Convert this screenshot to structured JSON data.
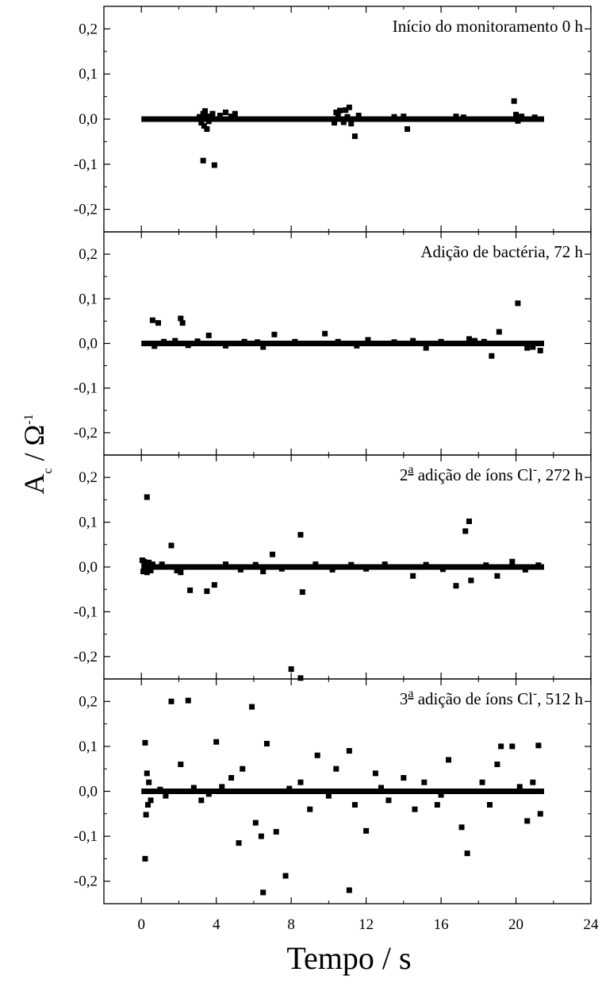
{
  "chart_data": {
    "type": "scatter",
    "xlabel": "Tempo / s",
    "ylabel": "A_c / Ω^-1",
    "ylabel_parts": {
      "main": "A",
      "sub": "c",
      "sep": " / Ω",
      "sup": "-1"
    },
    "xlim": [
      -2,
      24
    ],
    "ylim": [
      -0.25,
      0.25
    ],
    "xticks": [
      0,
      4,
      8,
      12,
      16,
      20,
      24
    ],
    "yticks": [
      -0.2,
      -0.1,
      0.0,
      0.1,
      0.2
    ],
    "ytick_labels": [
      "-0,2",
      "-0,1",
      "0,0",
      "0,1",
      "0,2"
    ],
    "marker_color": "#000000",
    "panels": [
      {
        "title": "Início do monitoramento 0 h",
        "title_parts": null,
        "baseline_x": [
          0,
          21.5
        ],
        "points": [
          {
            "x": 3.1,
            "y": 0.005
          },
          {
            "x": 3.2,
            "y": -0.008
          },
          {
            "x": 3.3,
            "y": 0.012
          },
          {
            "x": 3.35,
            "y": -0.015
          },
          {
            "x": 3.4,
            "y": 0.018
          },
          {
            "x": 3.5,
            "y": -0.022
          },
          {
            "x": 3.55,
            "y": 0.006
          },
          {
            "x": 3.6,
            "y": -0.005
          },
          {
            "x": 3.3,
            "y": -0.092
          },
          {
            "x": 3.9,
            "y": -0.102
          },
          {
            "x": 3.8,
            "y": 0.012
          },
          {
            "x": 4.2,
            "y": 0.008
          },
          {
            "x": 4.5,
            "y": 0.015
          },
          {
            "x": 4.8,
            "y": 0.006
          },
          {
            "x": 5.0,
            "y": 0.012
          },
          {
            "x": 10.3,
            "y": -0.008
          },
          {
            "x": 10.4,
            "y": 0.015
          },
          {
            "x": 10.5,
            "y": 0.01
          },
          {
            "x": 10.6,
            "y": 0.019
          },
          {
            "x": 10.8,
            "y": -0.007
          },
          {
            "x": 10.9,
            "y": 0.02
          },
          {
            "x": 11.0,
            "y": 0.005
          },
          {
            "x": 11.1,
            "y": 0.026
          },
          {
            "x": 11.2,
            "y": -0.01
          },
          {
            "x": 11.4,
            "y": -0.038
          },
          {
            "x": 11.6,
            "y": 0.008
          },
          {
            "x": 13.5,
            "y": 0.005
          },
          {
            "x": 14.2,
            "y": -0.022
          },
          {
            "x": 14.0,
            "y": 0.006
          },
          {
            "x": 16.8,
            "y": 0.006
          },
          {
            "x": 17.2,
            "y": 0.004
          },
          {
            "x": 19.9,
            "y": 0.04
          },
          {
            "x": 20.0,
            "y": 0.01
          },
          {
            "x": 20.1,
            "y": -0.004
          },
          {
            "x": 20.3,
            "y": 0.006
          },
          {
            "x": 21.0,
            "y": 0.004
          }
        ]
      },
      {
        "title": "Adição de bactéria, 72 h",
        "title_parts": null,
        "baseline_x": [
          0,
          21.5
        ],
        "points": [
          {
            "x": 0.6,
            "y": 0.052
          },
          {
            "x": 0.9,
            "y": 0.046
          },
          {
            "x": 2.1,
            "y": 0.056
          },
          {
            "x": 2.2,
            "y": 0.046
          },
          {
            "x": 3.6,
            "y": 0.018
          },
          {
            "x": 0.7,
            "y": -0.006
          },
          {
            "x": 1.2,
            "y": 0.004
          },
          {
            "x": 1.8,
            "y": 0.006
          },
          {
            "x": 2.5,
            "y": -0.004
          },
          {
            "x": 3.0,
            "y": 0.005
          },
          {
            "x": 4.5,
            "y": -0.005
          },
          {
            "x": 5.5,
            "y": 0.004
          },
          {
            "x": 6.2,
            "y": 0.003
          },
          {
            "x": 6.5,
            "y": -0.008
          },
          {
            "x": 7.1,
            "y": 0.02
          },
          {
            "x": 8.2,
            "y": 0.004
          },
          {
            "x": 9.8,
            "y": 0.022
          },
          {
            "x": 10.5,
            "y": 0.004
          },
          {
            "x": 11.5,
            "y": -0.005
          },
          {
            "x": 12.1,
            "y": 0.008
          },
          {
            "x": 13.5,
            "y": 0.003
          },
          {
            "x": 14.5,
            "y": 0.006
          },
          {
            "x": 15.2,
            "y": -0.01
          },
          {
            "x": 16.0,
            "y": 0.004
          },
          {
            "x": 17.5,
            "y": 0.01
          },
          {
            "x": 17.8,
            "y": 0.006
          },
          {
            "x": 18.3,
            "y": 0.004
          },
          {
            "x": 18.7,
            "y": -0.028
          },
          {
            "x": 19.1,
            "y": 0.026
          },
          {
            "x": 20.1,
            "y": 0.09
          },
          {
            "x": 20.6,
            "y": -0.01
          },
          {
            "x": 20.9,
            "y": -0.008
          },
          {
            "x": 21.3,
            "y": -0.016
          }
        ]
      },
      {
        "title": "2ª adição de íons Cl-, 272 h",
        "title_parts": {
          "pre": "2",
          "sup1": "a",
          "mid": " adição de íons Cl",
          "sup2": "-",
          "post": ", 272 h"
        },
        "baseline_x": [
          0,
          21.5
        ],
        "points": [
          {
            "x": 0.05,
            "y": 0.015
          },
          {
            "x": 0.1,
            "y": -0.01
          },
          {
            "x": 0.15,
            "y": 0.012
          },
          {
            "x": 0.2,
            "y": -0.006
          },
          {
            "x": 0.25,
            "y": 0.008
          },
          {
            "x": 0.3,
            "y": -0.012
          },
          {
            "x": 0.35,
            "y": 0.004
          },
          {
            "x": 0.4,
            "y": 0.01
          },
          {
            "x": 0.5,
            "y": -0.008
          },
          {
            "x": 0.6,
            "y": 0.006
          },
          {
            "x": 0.3,
            "y": 0.156
          },
          {
            "x": 1.6,
            "y": 0.048
          },
          {
            "x": 2.1,
            "y": -0.012
          },
          {
            "x": 2.6,
            "y": -0.052
          },
          {
            "x": 3.5,
            "y": -0.054
          },
          {
            "x": 3.9,
            "y": -0.04
          },
          {
            "x": 1.1,
            "y": 0.006
          },
          {
            "x": 1.9,
            "y": -0.008
          },
          {
            "x": 4.5,
            "y": 0.006
          },
          {
            "x": 5.3,
            "y": -0.006
          },
          {
            "x": 6.1,
            "y": 0.005
          },
          {
            "x": 6.5,
            "y": -0.01
          },
          {
            "x": 7.0,
            "y": 0.028
          },
          {
            "x": 7.5,
            "y": -0.004
          },
          {
            "x": 8.0,
            "y": -0.228
          },
          {
            "x": 8.5,
            "y": 0.072
          },
          {
            "x": 8.6,
            "y": -0.056
          },
          {
            "x": 8.5,
            "y": -0.248
          },
          {
            "x": 9.3,
            "y": 0.006
          },
          {
            "x": 10.2,
            "y": -0.006
          },
          {
            "x": 11.2,
            "y": 0.005
          },
          {
            "x": 12.0,
            "y": -0.004
          },
          {
            "x": 13.0,
            "y": 0.006
          },
          {
            "x": 14.5,
            "y": -0.02
          },
          {
            "x": 15.2,
            "y": 0.005
          },
          {
            "x": 16.1,
            "y": -0.005
          },
          {
            "x": 16.8,
            "y": -0.042
          },
          {
            "x": 17.3,
            "y": 0.08
          },
          {
            "x": 17.5,
            "y": 0.102
          },
          {
            "x": 17.6,
            "y": -0.03
          },
          {
            "x": 18.4,
            "y": 0.004
          },
          {
            "x": 19.0,
            "y": -0.02
          },
          {
            "x": 19.8,
            "y": 0.012
          },
          {
            "x": 20.5,
            "y": -0.006
          },
          {
            "x": 21.2,
            "y": 0.004
          }
        ]
      },
      {
        "title": "3ª adição de íons Cl-, 512 h",
        "title_parts": {
          "pre": "3",
          "sup1": "a",
          "mid": " adição de íons Cl",
          "sup2": "-",
          "post": ", 512 h"
        },
        "baseline_x": [
          0,
          21.5
        ],
        "points": [
          {
            "x": 0.2,
            "y": 0.108
          },
          {
            "x": 0.2,
            "y": -0.15
          },
          {
            "x": 0.25,
            "y": -0.052
          },
          {
            "x": 0.3,
            "y": 0.04
          },
          {
            "x": 0.35,
            "y": -0.03
          },
          {
            "x": 0.4,
            "y": 0.02
          },
          {
            "x": 0.5,
            "y": -0.02
          },
          {
            "x": 1.6,
            "y": 0.2
          },
          {
            "x": 2.5,
            "y": 0.202
          },
          {
            "x": 2.1,
            "y": 0.06
          },
          {
            "x": 3.2,
            "y": -0.02
          },
          {
            "x": 4.0,
            "y": 0.11
          },
          {
            "x": 4.8,
            "y": 0.03
          },
          {
            "x": 5.2,
            "y": -0.115
          },
          {
            "x": 5.9,
            "y": 0.188
          },
          {
            "x": 6.1,
            "y": -0.07
          },
          {
            "x": 6.5,
            "y": -0.225
          },
          {
            "x": 6.7,
            "y": 0.106
          },
          {
            "x": 7.2,
            "y": -0.09
          },
          {
            "x": 7.7,
            "y": -0.188
          },
          {
            "x": 6.4,
            "y": -0.1
          },
          {
            "x": 5.4,
            "y": 0.05
          },
          {
            "x": 8.5,
            "y": 0.02
          },
          {
            "x": 9.0,
            "y": -0.04
          },
          {
            "x": 9.4,
            "y": 0.08
          },
          {
            "x": 10.4,
            "y": 0.05
          },
          {
            "x": 11.1,
            "y": 0.09
          },
          {
            "x": 11.1,
            "y": -0.22
          },
          {
            "x": 11.4,
            "y": -0.03
          },
          {
            "x": 12.0,
            "y": -0.088
          },
          {
            "x": 12.5,
            "y": 0.04
          },
          {
            "x": 13.2,
            "y": -0.02
          },
          {
            "x": 14.0,
            "y": 0.03
          },
          {
            "x": 14.6,
            "y": -0.04
          },
          {
            "x": 15.1,
            "y": 0.02
          },
          {
            "x": 15.8,
            "y": -0.03
          },
          {
            "x": 16.4,
            "y": 0.07
          },
          {
            "x": 17.1,
            "y": -0.08
          },
          {
            "x": 17.4,
            "y": -0.138
          },
          {
            "x": 18.2,
            "y": 0.02
          },
          {
            "x": 18.6,
            "y": -0.03
          },
          {
            "x": 19.0,
            "y": 0.06
          },
          {
            "x": 19.2,
            "y": 0.1
          },
          {
            "x": 19.8,
            "y": 0.1
          },
          {
            "x": 20.6,
            "y": -0.066
          },
          {
            "x": 20.9,
            "y": 0.02
          },
          {
            "x": 21.2,
            "y": 0.102
          },
          {
            "x": 21.3,
            "y": -0.05
          },
          {
            "x": 1.0,
            "y": 0.004
          },
          {
            "x": 1.3,
            "y": -0.01
          },
          {
            "x": 2.8,
            "y": 0.008
          },
          {
            "x": 3.6,
            "y": -0.006
          },
          {
            "x": 4.3,
            "y": 0.01
          },
          {
            "x": 7.9,
            "y": 0.006
          },
          {
            "x": 10.0,
            "y": -0.01
          },
          {
            "x": 12.8,
            "y": 0.008
          },
          {
            "x": 16.0,
            "y": -0.008
          },
          {
            "x": 20.2,
            "y": 0.01
          }
        ]
      }
    ]
  }
}
